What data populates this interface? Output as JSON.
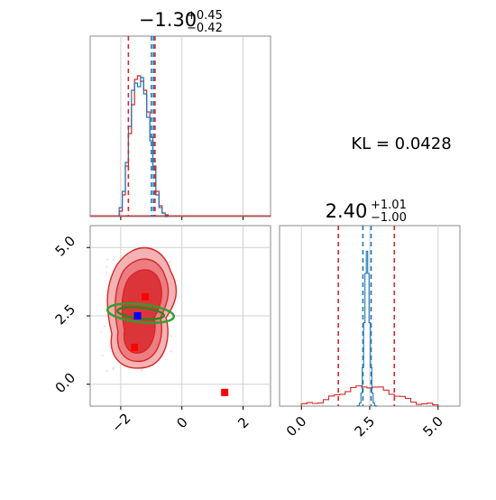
{
  "chart_data": [
    {
      "type": "histogram",
      "panel": "top-left marginal (x)",
      "title_main": "−1.30",
      "title_sup": "+0.45",
      "title_sub": "−0.42",
      "xlim": [
        -3.0,
        2.9
      ],
      "grid": true,
      "x_ticks": [
        -2,
        0,
        2
      ],
      "series": [
        {
          "color": "#d62728",
          "lines": [
            -1.75,
            -0.88
          ]
        },
        {
          "color": "#1f77b4",
          "lines": [
            -1.0,
            -0.93
          ]
        }
      ],
      "bins_x": [
        -2.0,
        -1.9,
        -1.8,
        -1.7,
        -1.6,
        -1.5,
        -1.4,
        -1.3,
        -1.2,
        -1.1,
        -1.0,
        -0.9,
        -0.8,
        -0.7,
        -0.6,
        -0.5
      ],
      "red_counts": [
        0.03,
        0.12,
        0.28,
        0.46,
        0.62,
        0.76,
        0.78,
        0.75,
        0.7,
        0.58,
        0.44,
        0.28,
        0.14,
        0.06,
        0.02,
        0.01
      ],
      "blue_counts": [
        0.05,
        0.14,
        0.3,
        0.5,
        0.7,
        0.74,
        0.72,
        0.77,
        0.68,
        0.55,
        0.42,
        0.26,
        0.12,
        0.05,
        0.02,
        0.0
      ]
    },
    {
      "type": "text",
      "panel": "top-right",
      "label": "KL = 0.0428"
    },
    {
      "type": "scatter-contour",
      "panel": "bottom-left (x vs y)",
      "xlim": [
        -3.0,
        2.9
      ],
      "ylim": [
        -0.8,
        5.8
      ],
      "x_ticks": [
        -2,
        0,
        2
      ],
      "y_ticks": [
        0.0,
        2.5,
        5.0
      ],
      "x_tick_labels": [
        "−2",
        "0",
        "2"
      ],
      "y_tick_labels": [
        "0.0",
        "2.5",
        "5.0"
      ],
      "grid": true,
      "red_markers": [
        [
          -1.2,
          3.2
        ],
        [
          -1.55,
          1.35
        ],
        [
          1.4,
          -0.3
        ]
      ],
      "blue_marker": [
        -1.45,
        2.5
      ],
      "green_ellipse": {
        "center": [
          -1.45,
          2.5
        ],
        "rx": 1.2,
        "ry": 0.25
      }
    },
    {
      "type": "histogram",
      "panel": "bottom-right marginal (y)",
      "title_main": "2.40",
      "title_sup": "+1.01",
      "title_sub": "−1.00",
      "xlim": [
        -0.8,
        5.8
      ],
      "grid": true,
      "x_ticks": [
        0.0,
        2.5,
        5.0
      ],
      "x_tick_labels": [
        "0.0",
        "2.5",
        "5.0"
      ],
      "series": [
        {
          "color": "#d62728",
          "lines": [
            1.35,
            3.4
          ]
        },
        {
          "color": "#1f77b4",
          "lines": [
            2.25,
            2.55
          ]
        }
      ]
    }
  ]
}
